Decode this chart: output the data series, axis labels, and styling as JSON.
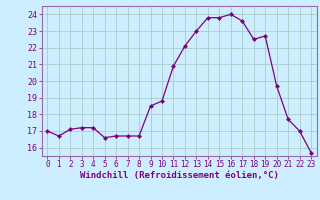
{
  "x": [
    0,
    1,
    2,
    3,
    4,
    5,
    6,
    7,
    8,
    9,
    10,
    11,
    12,
    13,
    14,
    15,
    16,
    17,
    18,
    19,
    20,
    21,
    22,
    23
  ],
  "y": [
    17.0,
    16.7,
    17.1,
    17.2,
    17.2,
    16.6,
    16.7,
    16.7,
    16.7,
    18.5,
    18.8,
    20.9,
    22.1,
    23.0,
    23.8,
    23.8,
    24.0,
    23.6,
    22.5,
    22.7,
    19.7,
    17.7,
    17.0,
    15.7
  ],
  "line_color": "#800080",
  "marker": "D",
  "marker_size": 2.0,
  "bg_color": "#cceeff",
  "grid_color": "#aacccc",
  "xlabel": "Windchill (Refroidissement éolien,°C)",
  "xlabel_fontsize": 6.5,
  "ylim": [
    15.5,
    24.5
  ],
  "xlim": [
    -0.5,
    23.5
  ],
  "yticks": [
    16,
    17,
    18,
    19,
    20,
    21,
    22,
    23,
    24
  ],
  "xticks": [
    0,
    1,
    2,
    3,
    4,
    5,
    6,
    7,
    8,
    9,
    10,
    11,
    12,
    13,
    14,
    15,
    16,
    17,
    18,
    19,
    20,
    21,
    22,
    23
  ],
  "tick_color": "#800080",
  "tick_fontsize": 5.5,
  "spine_color": "#9966aa"
}
